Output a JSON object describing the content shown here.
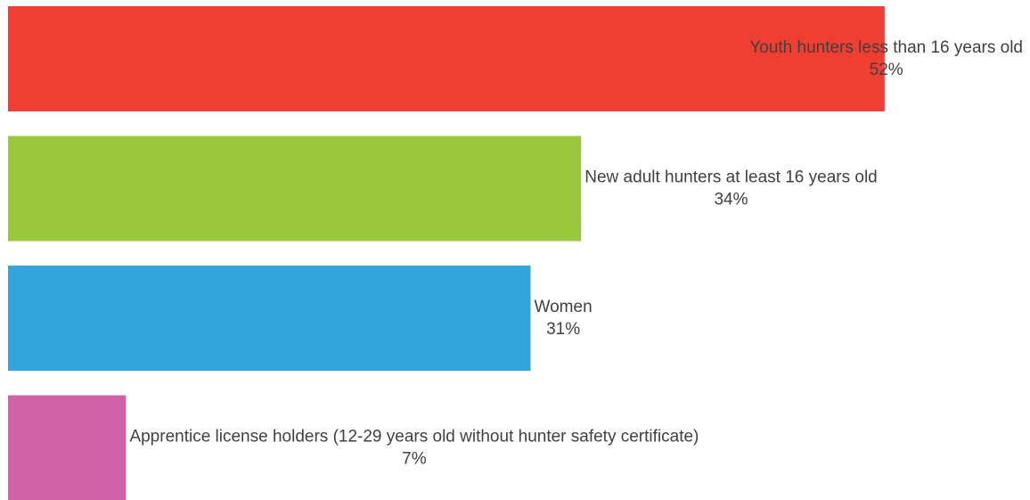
{
  "chart_data": {
    "type": "bar",
    "orientation": "horizontal",
    "categories": [
      "Youth hunters less than 16 years old",
      "New adult hunters at least 16 years old",
      "Women",
      "Apprentice license holders (12-29 years old without hunter safety certificate)"
    ],
    "values": [
      52,
      34,
      31,
      7
    ],
    "value_labels": [
      "52%",
      "34%",
      "31%",
      "7%"
    ],
    "colors": [
      "#f03e32",
      "#9ac83d",
      "#33a4dc",
      "#d062a7"
    ]
  }
}
